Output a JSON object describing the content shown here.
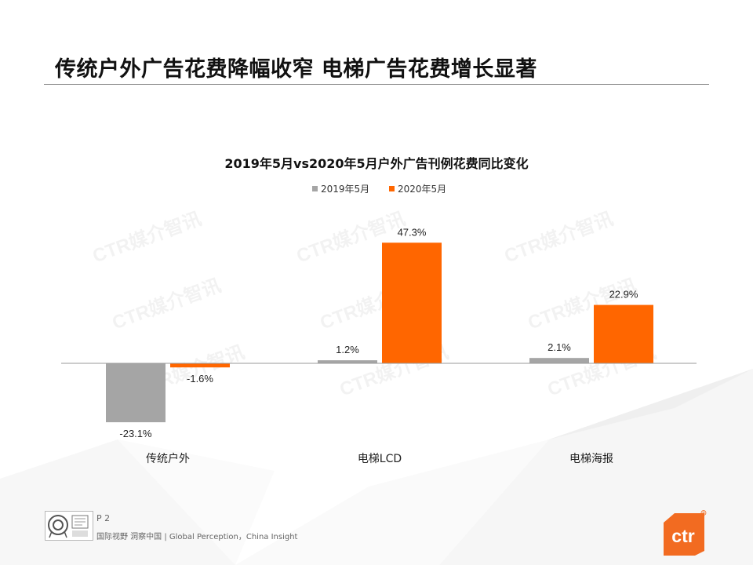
{
  "slide_title": "传统户外广告花费降幅收窄 电梯广告花费增长显著",
  "watermark": "CTR媒介智讯",
  "footer": {
    "page": "P 2",
    "tagline": "国际视野 洞察中国 | Global Perception，China Insight",
    "certification_icons": [
      "certification-seal-icon",
      "sgs-badge-icon"
    ],
    "brand": "ctr",
    "brand_mark": "®"
  },
  "colors": {
    "series_2019": "#A5A5A5",
    "series_2020": "#FF6600",
    "accent_logo": "#F26B21"
  },
  "chart_data": {
    "type": "bar",
    "title": "2019年5月vs2020年5月户外广告刊例花费同比变化",
    "xlabel": "",
    "ylabel": "",
    "categories": [
      "传统户外",
      "电梯LCD",
      "电梯海报"
    ],
    "series": [
      {
        "name": "2019年5月",
        "values": [
          -23.1,
          1.2,
          2.1
        ],
        "labels": [
          "-23.1%",
          "1.2%",
          "2.1%"
        ]
      },
      {
        "name": "2020年5月",
        "values": [
          -1.6,
          47.3,
          22.9
        ],
        "labels": [
          "-1.6%",
          "47.3%",
          "22.9%"
        ]
      }
    ],
    "ylim": [
      -30,
      50
    ],
    "grid": false,
    "legend": "top-center",
    "value_axis_visible": false
  }
}
